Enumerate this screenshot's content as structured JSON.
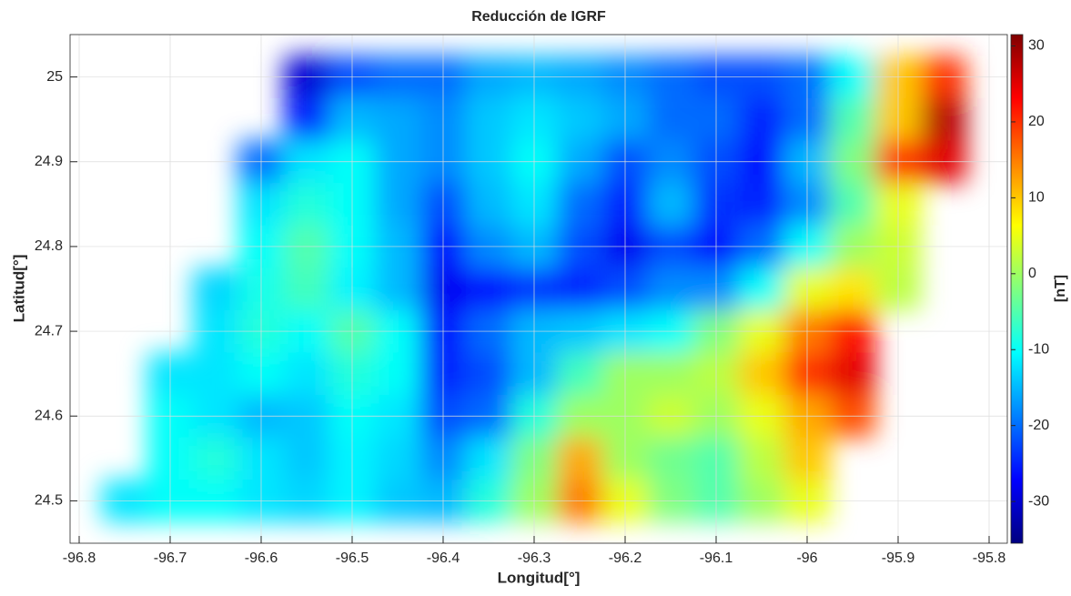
{
  "chart_data": {
    "type": "heatmap",
    "title": "Reducción de IGRF",
    "x_label": "Longitud[°]",
    "y_label": "Latitud[°]",
    "colorbar_label": "[nT]",
    "colormap": "jet",
    "grid": true,
    "xlim": [
      -96.81,
      -95.78
    ],
    "ylim": [
      24.45,
      25.05
    ],
    "xticks": [
      -96.8,
      -96.7,
      -96.6,
      -96.5,
      -96.4,
      -96.3,
      -96.2,
      -96.1,
      -96,
      -95.9,
      -95.8
    ],
    "yticks": [
      24.5,
      24.6,
      24.7,
      24.8,
      24.9,
      25
    ],
    "clim": [
      -35.5,
      31.5
    ],
    "cticks": [
      -30,
      -20,
      -10,
      0,
      10,
      20,
      30
    ],
    "x": [
      -96.8,
      -96.75,
      -96.7,
      -96.65,
      -96.6,
      -96.55,
      -96.5,
      -96.45,
      -96.4,
      -96.35,
      -96.3,
      -96.25,
      -96.2,
      -96.15,
      -96.1,
      -96.05,
      -96.0,
      -95.95,
      -95.9,
      -95.85,
      -95.8
    ],
    "y": [
      24.5,
      24.55,
      24.6,
      24.65,
      24.7,
      24.75,
      24.8,
      24.85,
      24.9,
      24.95,
      25.0
    ],
    "z": [
      [
        null,
        -12,
        -10,
        -10,
        -12,
        -13,
        -11,
        -14,
        -15,
        -8,
        0,
        15,
        5,
        -2,
        -5,
        0,
        5,
        null,
        null,
        null,
        null
      ],
      [
        null,
        null,
        -10,
        -8,
        -12,
        -14,
        -11,
        -13,
        -18,
        -12,
        -2,
        12,
        0,
        -3,
        -5,
        2,
        10,
        null,
        null,
        null,
        null
      ],
      [
        null,
        null,
        -10,
        -12,
        -15,
        -14,
        -10,
        -12,
        -22,
        -20,
        -8,
        0,
        0,
        3,
        0,
        5,
        12,
        18,
        null,
        null,
        null
      ],
      [
        null,
        null,
        -12,
        -12,
        -10,
        -12,
        -8,
        -10,
        -25,
        -22,
        -15,
        -6,
        0,
        0,
        2,
        10,
        20,
        25,
        null,
        null,
        null
      ],
      [
        null,
        null,
        null,
        -12,
        -8,
        -10,
        -5,
        -10,
        -26,
        -20,
        -15,
        -14,
        -12,
        -10,
        -2,
        5,
        15,
        22,
        null,
        null,
        null
      ],
      [
        null,
        null,
        null,
        -13,
        -9,
        -6,
        -11,
        -15,
        -28,
        -26,
        -24,
        -25,
        -22,
        -18,
        -18,
        -10,
        5,
        8,
        2,
        null,
        null
      ],
      [
        null,
        null,
        null,
        null,
        -10,
        -5,
        -10,
        -15,
        -26,
        -18,
        -15,
        -22,
        -28,
        -22,
        -26,
        -20,
        -10,
        0,
        3,
        null,
        null
      ],
      [
        null,
        null,
        null,
        null,
        -12,
        -8,
        -10,
        -16,
        -22,
        -15,
        -12,
        -20,
        -25,
        -15,
        -24,
        -25,
        -18,
        -5,
        5,
        null,
        null
      ],
      [
        null,
        null,
        null,
        null,
        -20,
        -12,
        -10,
        -16,
        -18,
        -14,
        -10,
        -16,
        -22,
        -18,
        -22,
        -26,
        -15,
        -2,
        20,
        25,
        null
      ],
      [
        null,
        null,
        null,
        null,
        null,
        -25,
        -15,
        -16,
        -18,
        -14,
        -12,
        -14,
        -16,
        -20,
        -20,
        -25,
        -20,
        -5,
        10,
        28,
        null
      ],
      [
        null,
        null,
        null,
        null,
        null,
        -30,
        -22,
        -20,
        -20,
        -16,
        -15,
        -16,
        -18,
        -20,
        -22,
        -22,
        -20,
        -10,
        10,
        20,
        null
      ]
    ]
  }
}
